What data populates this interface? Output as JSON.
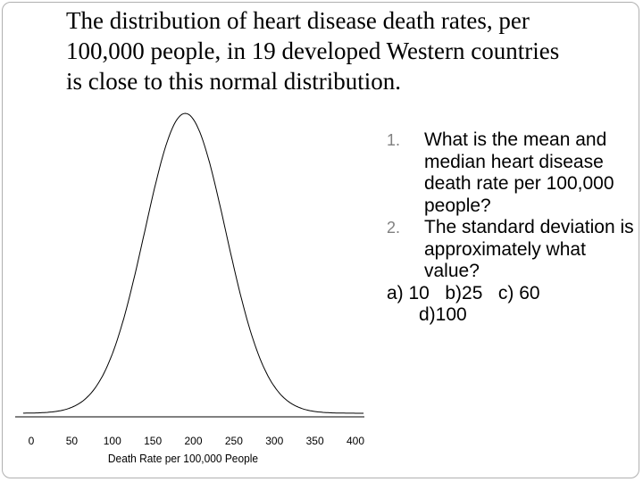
{
  "title": {
    "lines": [
      "The distribution of heart disease death rates, per",
      "100,000 people, in 19 developed Western countries",
      "is close to this normal distribution."
    ]
  },
  "chart_data": {
    "type": "line",
    "title": "",
    "xlabel": "Death Rate per 100,000 People",
    "ylabel": "",
    "x_ticks": [
      0,
      50,
      100,
      150,
      200,
      250,
      300,
      350,
      400
    ],
    "xlim": [
      0,
      400
    ],
    "mean": 190,
    "sd": 50,
    "grid": false,
    "series": [
      {
        "values_description": "normal density curve centered at mean"
      }
    ]
  },
  "questions": [
    {
      "num": "1.",
      "text": "What is the mean and median heart disease death rate per 100,000 people?"
    },
    {
      "num": "2.",
      "text": "The standard deviation is approximately what value?"
    }
  ],
  "answers": {
    "line1": "a) 10   b)25   c) 60",
    "line2": "d)100"
  }
}
